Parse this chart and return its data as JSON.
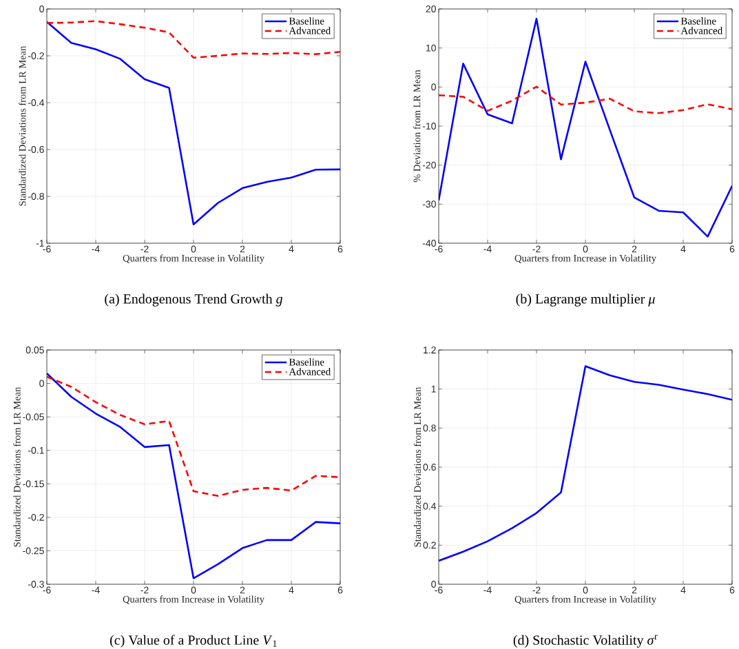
{
  "chart_data": [
    {
      "type": "line",
      "title": "(a)  Endogenous Trend Growth *g*",
      "xlabel": "Quarters from Increase in Volatility",
      "ylabel": "Standardized Deviations from LR Mean",
      "x": [
        -6,
        -5,
        -4,
        -3,
        -2,
        -1,
        0,
        1,
        2,
        3,
        4,
        5,
        6
      ],
      "xlim": [
        -6,
        6
      ],
      "xticks": [
        -6,
        -4,
        -2,
        0,
        2,
        4,
        6
      ],
      "ylim": [
        -1,
        0
      ],
      "yticks": [
        -1,
        -0.8,
        -0.6,
        -0.4,
        -0.2,
        0
      ],
      "grid": true,
      "legend": "top right",
      "marker": "none",
      "series": [
        {
          "name": "Baseline",
          "color": "#0000ff",
          "line_style": "solid",
          "values": [
            -0.055,
            -0.145,
            -0.172,
            -0.213,
            -0.3,
            -0.337,
            -0.92,
            -0.828,
            -0.765,
            -0.738,
            -0.72,
            -0.686,
            -0.685
          ]
        },
        {
          "name": "Advanced",
          "color": "#ff0000",
          "line_style": "dashed",
          "values": [
            -0.06,
            -0.058,
            -0.052,
            -0.065,
            -0.08,
            -0.1,
            -0.208,
            -0.2,
            -0.19,
            -0.192,
            -0.188,
            -0.193,
            -0.183
          ]
        }
      ]
    },
    {
      "type": "line",
      "title": "(b)  Lagrange multiplier *μ*",
      "xlabel": "Quarters from Increase in Volatility",
      "ylabel": "% Deviation from LR Mean",
      "x": [
        -6,
        -5,
        -4,
        -3,
        -2,
        -1,
        0,
        1,
        2,
        3,
        4,
        5,
        6
      ],
      "xlim": [
        -6,
        6
      ],
      "xticks": [
        -6,
        -4,
        -2,
        0,
        2,
        4,
        6
      ],
      "ylim": [
        -40,
        20
      ],
      "yticks": [
        -40,
        -30,
        -20,
        -10,
        0,
        10,
        20
      ],
      "grid": true,
      "legend": "top right",
      "marker": "none",
      "series": [
        {
          "name": "Baseline",
          "color": "#0000ff",
          "line_style": "solid",
          "values": [
            -29,
            6,
            -7,
            -9.3,
            17.5,
            -18.5,
            6.5,
            -11,
            -28.3,
            -31.7,
            -32.1,
            -38.3,
            -25.3
          ]
        },
        {
          "name": "Advanced",
          "color": "#ff0000",
          "line_style": "dashed",
          "values": [
            -2.1,
            -2.5,
            -6.1,
            -3.5,
            0.1,
            -4.5,
            -4,
            -3,
            -6.2,
            -6.7,
            -5.9,
            -4.4,
            -5.7
          ]
        }
      ]
    },
    {
      "type": "line",
      "title": "(c)  Value of a Product Line *V*$_{1}$",
      "xlabel": "Quarters from Increase in Volatility",
      "ylabel": "Standardized Deviations from LR Mean",
      "x": [
        -6,
        -5,
        -4,
        -3,
        -2,
        -1,
        0,
        1,
        2,
        3,
        4,
        5,
        6
      ],
      "xlim": [
        -6,
        6
      ],
      "xticks": [
        -6,
        -4,
        -2,
        0,
        2,
        4,
        6
      ],
      "ylim": [
        -0.3,
        0.05
      ],
      "yticks": [
        -0.3,
        -0.25,
        -0.2,
        -0.15,
        -0.1,
        -0.05,
        0,
        0.05
      ],
      "grid": true,
      "legend": "top right",
      "marker": "none",
      "series": [
        {
          "name": "Baseline",
          "color": "#0000ff",
          "line_style": "solid",
          "values": [
            0.015,
            -0.02,
            -0.045,
            -0.065,
            -0.095,
            -0.092,
            -0.291,
            -0.27,
            -0.246,
            -0.234,
            -0.234,
            -0.207,
            -0.209
          ]
        },
        {
          "name": "Advanced",
          "color": "#ff0000",
          "line_style": "dashed",
          "values": [
            0.01,
            -0.005,
            -0.028,
            -0.047,
            -0.061,
            -0.056,
            -0.161,
            -0.168,
            -0.159,
            -0.156,
            -0.16,
            -0.138,
            -0.14
          ]
        }
      ]
    },
    {
      "type": "line",
      "title": "(d)  Stochastic Volatility *σ*$^{r}$",
      "xlabel": "Quarters from Increase in Volatility",
      "ylabel": "Standardized Deviations from LR Mean",
      "x": [
        -6,
        -5,
        -4,
        -3,
        -2,
        -1,
        0,
        1,
        2,
        3,
        4,
        5,
        6
      ],
      "xlim": [
        -6,
        6
      ],
      "xticks": [
        -6,
        -4,
        -2,
        0,
        2,
        4,
        6
      ],
      "ylim": [
        0,
        1.2
      ],
      "yticks": [
        0,
        0.2,
        0.4,
        0.6,
        0.8,
        1,
        1.2
      ],
      "grid": true,
      "marker": "none",
      "series": [
        {
          "color": "#0000ff",
          "line_style": "solid",
          "values": [
            0.12,
            0.167,
            0.22,
            0.287,
            0.365,
            0.47,
            1.117,
            1.07,
            1.037,
            1.022,
            0.997,
            0.974,
            0.945
          ]
        }
      ]
    }
  ]
}
